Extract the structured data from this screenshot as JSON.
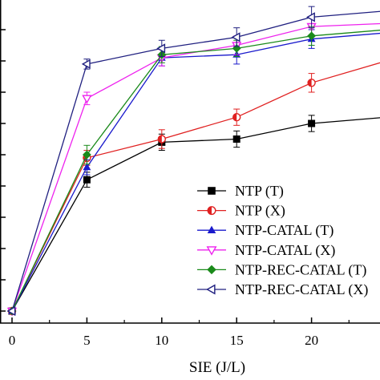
{
  "chart_data": {
    "type": "line",
    "title": "",
    "xlabel": "SIE (J/L)",
    "ylabel": "",
    "x": [
      0,
      5,
      10,
      15,
      20,
      25
    ],
    "xticks": [
      0,
      5,
      10,
      15,
      20
    ],
    "xlim": [
      0,
      25
    ],
    "ylim": [
      0,
      50
    ],
    "ytick_step": 5,
    "grid": false,
    "legend_position": "bottom-right",
    "series": [
      {
        "name": "NTP (T)",
        "color": "#000000",
        "marker": "square",
        "values": [
          0,
          21,
          27,
          27.5,
          30,
          31
        ],
        "errors": [
          0,
          1.2,
          1.3,
          1.3,
          1.3,
          1.3
        ]
      },
      {
        "name": "NTP (X)",
        "color": "#e02020",
        "marker": "half-circle",
        "values": [
          0,
          24.5,
          27.5,
          31,
          36.5,
          40
        ],
        "errors": [
          0,
          1.2,
          1.5,
          1.3,
          1.5,
          1.5
        ]
      },
      {
        "name": "NTP-CATAL (T)",
        "color": "#1a1acc",
        "marker": "triangle-up",
        "values": [
          0,
          23,
          40.5,
          41,
          43.5,
          44.5
        ],
        "errors": [
          0,
          1.2,
          1.3,
          1.5,
          1.5,
          1.5
        ]
      },
      {
        "name": "NTP-CATAL (X)",
        "color": "#ee22ee",
        "marker": "triangle-down",
        "values": [
          0,
          34,
          40.5,
          42.5,
          45.5,
          46
        ],
        "errors": [
          0,
          1,
          1.3,
          1.5,
          1.5,
          1.5
        ]
      },
      {
        "name": "NTP-REC-CATAL (T)",
        "color": "#1a8a1a",
        "marker": "diamond",
        "values": [
          0,
          25,
          41,
          42,
          44,
          45
        ],
        "errors": [
          0,
          1.5,
          1.3,
          1.3,
          1.5,
          1.5
        ]
      },
      {
        "name": "NTP-REC-CATAL (X)",
        "color": "#202080",
        "marker": "triangle-left",
        "values": [
          0,
          39.5,
          42,
          43.8,
          47,
          48
        ],
        "errors": [
          0,
          0.8,
          1.3,
          1.5,
          1.7,
          1.7
        ]
      }
    ]
  }
}
